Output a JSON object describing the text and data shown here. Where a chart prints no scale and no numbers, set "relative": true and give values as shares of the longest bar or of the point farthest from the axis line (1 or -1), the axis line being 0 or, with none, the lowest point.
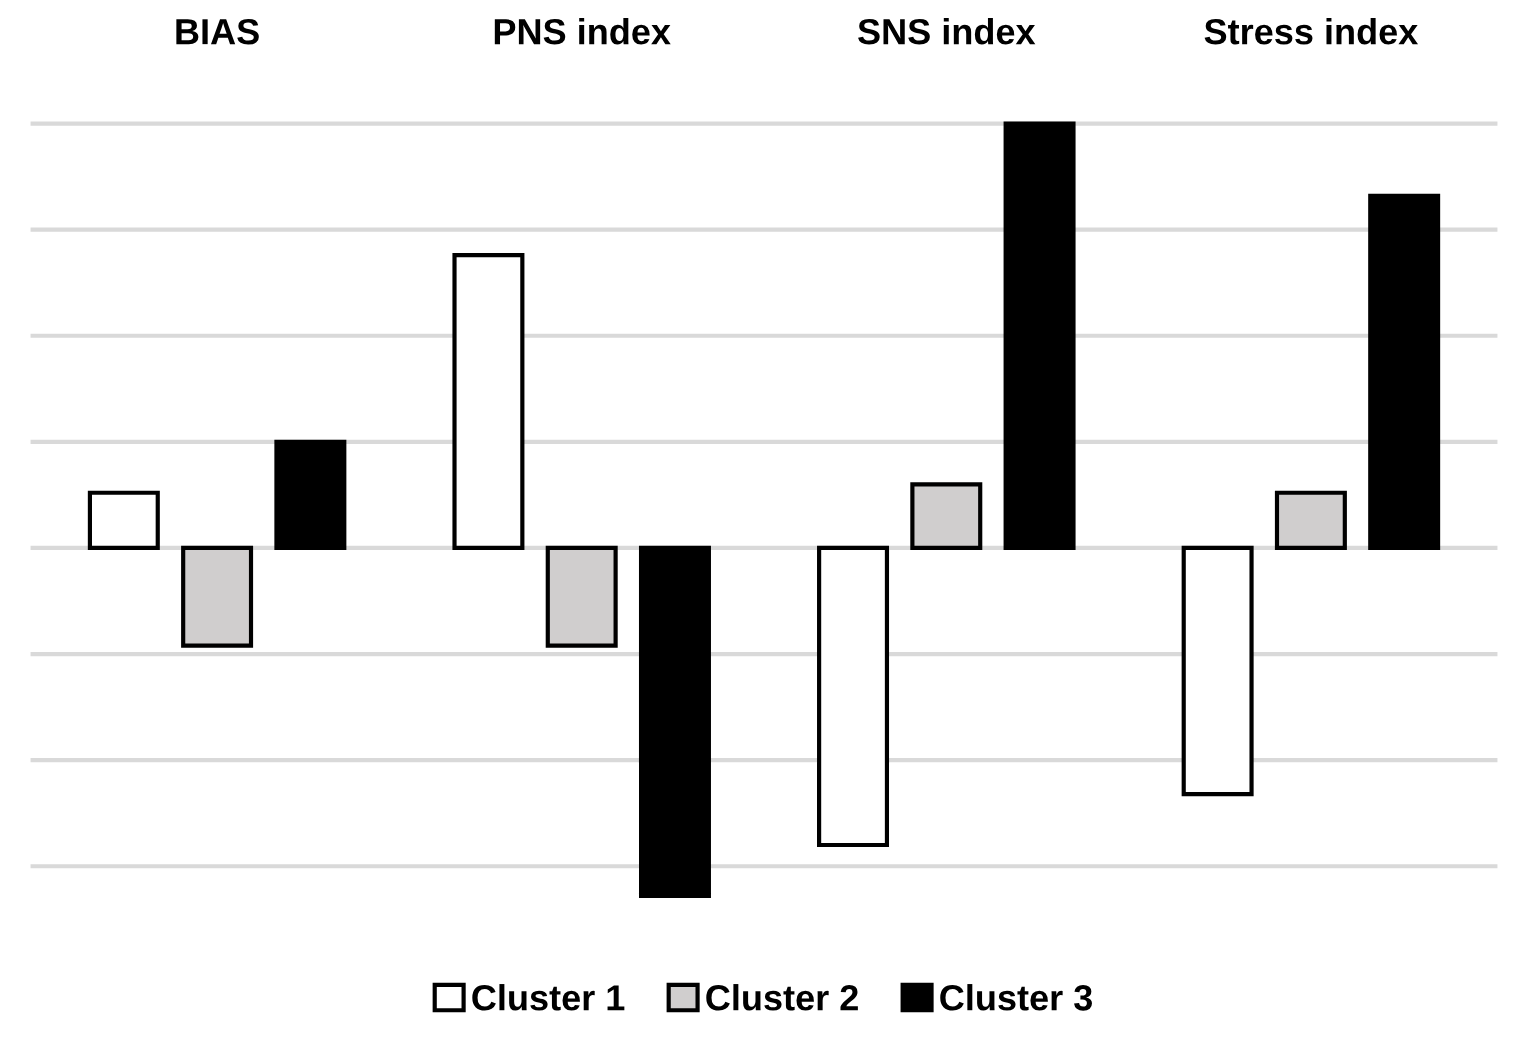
{
  "chart_data": {
    "type": "bar",
    "relative": true,
    "categories": [
      "BIAS",
      "PNS index",
      "SNS index",
      "Stress index"
    ],
    "series": [
      {
        "name": "Cluster 1",
        "color": "#ffffff",
        "values": [
          0.13,
          0.69,
          -0.7,
          -0.58
        ]
      },
      {
        "name": "Cluster 2",
        "color": "#d0cece",
        "values": [
          -0.23,
          -0.23,
          0.15,
          0.13
        ]
      },
      {
        "name": "Cluster 3",
        "color": "#000000",
        "values": [
          0.25,
          -0.82,
          1,
          0.83
        ]
      }
    ],
    "grid": "y",
    "legend": "bottom"
  }
}
